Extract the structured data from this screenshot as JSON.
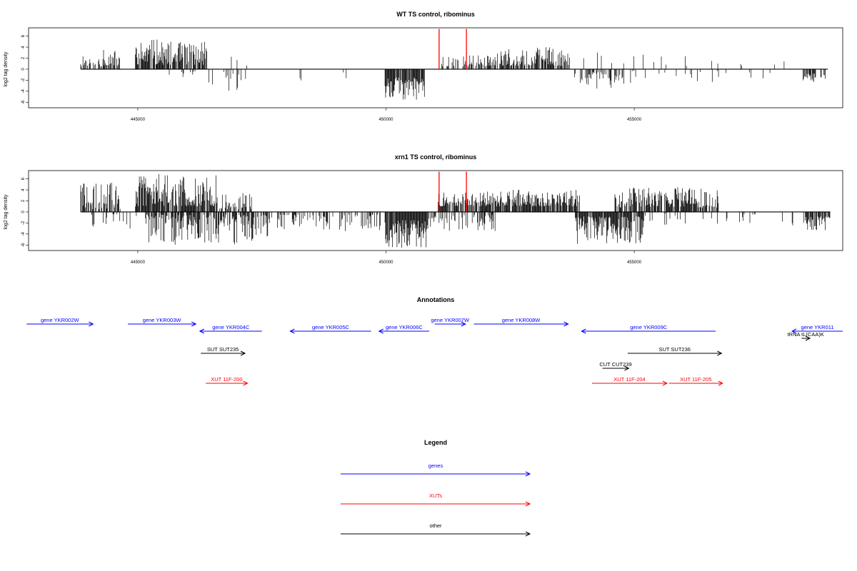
{
  "chart_data": [
    {
      "type": "bar",
      "title": "WT TS control, ribominus",
      "xlabel": "",
      "ylabel": "log2 tag density",
      "xlim": [
        442800,
        459200
      ],
      "ylim": [
        -7,
        7.5
      ],
      "x_ticks": [
        445000,
        450000,
        455000
      ],
      "x_tick_labels": [
        "445000",
        "450000",
        "455000"
      ],
      "y_ticks": [
        6,
        4,
        2,
        0,
        -2,
        -4,
        -6
      ],
      "y_tick_labels": [
        "6",
        "4",
        "2",
        "0",
        "-2",
        "-4",
        "-6"
      ],
      "markers": [
        451070,
        451620
      ],
      "marker_color": "#ff0000",
      "bar_color": "#000000",
      "regions": [
        {
          "strand": "+",
          "start": 443850,
          "end": 444650,
          "min": 0.5,
          "max": 3.5,
          "density": 0.6
        },
        {
          "strand": "+",
          "start": 444950,
          "end": 445400,
          "min": 0.8,
          "max": 5.4,
          "density": 0.8
        },
        {
          "strand": "+",
          "start": 445400,
          "end": 446400,
          "min": 0.8,
          "max": 5.0,
          "density": 0.75
        },
        {
          "strand": "+",
          "start": 446700,
          "end": 447200,
          "min": 0.5,
          "max": 3.0,
          "density": 0.2
        },
        {
          "strand": "-",
          "start": 445600,
          "end": 446300,
          "min": 0.4,
          "max": 2.0,
          "density": 0.15
        },
        {
          "strand": "-",
          "start": 446400,
          "end": 447200,
          "min": 0.5,
          "max": 4.0,
          "density": 0.25
        },
        {
          "strand": "-",
          "start": 447300,
          "end": 449800,
          "min": 0.5,
          "max": 2.5,
          "density": 0.05
        },
        {
          "strand": "-",
          "start": 449980,
          "end": 450780,
          "min": 1.5,
          "max": 5.8,
          "density": 0.9
        },
        {
          "strand": "+",
          "start": 451100,
          "end": 452200,
          "min": 0.5,
          "max": 2.5,
          "density": 0.5
        },
        {
          "strand": "+",
          "start": 452200,
          "end": 453700,
          "min": 0.6,
          "max": 4.0,
          "density": 0.7
        },
        {
          "strand": "+",
          "start": 453900,
          "end": 456200,
          "min": 0.5,
          "max": 3.0,
          "density": 0.05
        },
        {
          "strand": "+",
          "start": 456200,
          "end": 458800,
          "min": 0.5,
          "max": 2.0,
          "density": 0.02
        },
        {
          "strand": "-",
          "start": 453800,
          "end": 454800,
          "min": 0.5,
          "max": 3.5,
          "density": 0.45
        },
        {
          "strand": "-",
          "start": 454800,
          "end": 457800,
          "min": 0.3,
          "max": 2.5,
          "density": 0.06
        },
        {
          "strand": "-",
          "start": 458400,
          "end": 458900,
          "min": 0.8,
          "max": 2.3,
          "density": 0.65
        }
      ]
    },
    {
      "type": "bar",
      "title": "xrn1 TS control, ribominus",
      "xlabel": "",
      "ylabel": "log2 tag density",
      "xlim": [
        442800,
        459200
      ],
      "ylim": [
        -7,
        7.5
      ],
      "x_ticks": [
        445000,
        450000,
        455000
      ],
      "x_tick_labels": [
        "445000",
        "450000",
        "455000"
      ],
      "y_ticks": [
        6,
        4,
        2,
        0,
        -2,
        -4,
        -6
      ],
      "y_tick_labels": [
        "6",
        "4",
        "2",
        "0",
        "-2",
        "-4",
        "-6"
      ],
      "markers": [
        451070,
        451620
      ],
      "marker_color": "#ff0000",
      "bar_color": "#000000",
      "regions": [
        {
          "strand": "+",
          "start": 443850,
          "end": 444650,
          "min": 0.5,
          "max": 5.5,
          "density": 0.7
        },
        {
          "strand": "+",
          "start": 444950,
          "end": 446600,
          "min": 1.0,
          "max": 7.0,
          "density": 0.9
        },
        {
          "strand": "+",
          "start": 446600,
          "end": 447300,
          "min": 0.5,
          "max": 3.5,
          "density": 0.6
        },
        {
          "strand": "-",
          "start": 443900,
          "end": 445200,
          "min": 0.4,
          "max": 3.2,
          "density": 0.15
        },
        {
          "strand": "-",
          "start": 445200,
          "end": 447700,
          "min": 0.5,
          "max": 6.0,
          "density": 0.7
        },
        {
          "strand": "-",
          "start": 447800,
          "end": 449900,
          "min": 0.5,
          "max": 3.5,
          "density": 0.35
        },
        {
          "strand": "-",
          "start": 449980,
          "end": 450850,
          "min": 1.5,
          "max": 6.5,
          "density": 0.95
        },
        {
          "strand": "-",
          "start": 450850,
          "end": 452200,
          "min": 0.5,
          "max": 3.5,
          "density": 0.4
        },
        {
          "strand": "+",
          "start": 451050,
          "end": 452000,
          "min": 1.0,
          "max": 3.5,
          "density": 0.8
        },
        {
          "strand": "+",
          "start": 452000,
          "end": 453900,
          "min": 1.0,
          "max": 4.2,
          "density": 0.85
        },
        {
          "strand": "-",
          "start": 453800,
          "end": 455200,
          "min": 0.8,
          "max": 5.8,
          "density": 0.9
        },
        {
          "strand": "+",
          "start": 454600,
          "end": 456700,
          "min": 0.8,
          "max": 4.5,
          "density": 0.75
        },
        {
          "strand": "-",
          "start": 455200,
          "end": 458200,
          "min": 0.3,
          "max": 2.5,
          "density": 0.1
        },
        {
          "strand": "-",
          "start": 458400,
          "end": 458950,
          "min": 0.8,
          "max": 3.5,
          "density": 0.8
        }
      ]
    }
  ],
  "annotations": {
    "title": "Annotations",
    "items": [
      {
        "label": "gene YKR002W",
        "type": "gene",
        "strand": "+",
        "start": 442760,
        "end": 444100
      },
      {
        "label": "gene YKR003W",
        "type": "gene",
        "strand": "+",
        "start": 444800,
        "end": 446170
      },
      {
        "label": "gene YKR004C",
        "type": "gene",
        "strand": "-",
        "start": 446250,
        "end": 447500
      },
      {
        "label": "gene YKR005C",
        "type": "gene",
        "strand": "-",
        "start": 448070,
        "end": 449700
      },
      {
        "label": "gene YKR006C",
        "type": "gene",
        "strand": "-",
        "start": 449860,
        "end": 450870
      },
      {
        "label": "gene YKR007W",
        "type": "gene",
        "strand": "+",
        "start": 450980,
        "end": 451600
      },
      {
        "label": "gene YKR008W",
        "type": "gene",
        "strand": "+",
        "start": 451770,
        "end": 453670
      },
      {
        "label": "gene YKR009C",
        "type": "gene",
        "strand": "-",
        "start": 453940,
        "end": 456640
      },
      {
        "label": "gene YKR011",
        "type": "gene",
        "strand": "-",
        "start": 458180,
        "end": 459200
      },
      {
        "label": "tRNA tL(CAA)K",
        "type": "other",
        "strand": "+",
        "start": 458370,
        "end": 458540
      },
      {
        "label": "SUT SUT235",
        "type": "other",
        "strand": "+",
        "start": 446270,
        "end": 447160
      },
      {
        "label": "SUT SUT236",
        "type": "other",
        "strand": "+",
        "start": 454870,
        "end": 456760
      },
      {
        "label": "CUT CUT239",
        "type": "other",
        "strand": "+",
        "start": 454360,
        "end": 454890
      },
      {
        "label": "XUT 11F-200",
        "type": "xut",
        "strand": "+",
        "start": 446370,
        "end": 447210
      },
      {
        "label": "XUT 11F-204",
        "type": "xut",
        "strand": "+",
        "start": 454150,
        "end": 455660
      },
      {
        "label": "XUT 11F-205",
        "type": "xut",
        "strand": "+",
        "start": 455700,
        "end": 456780
      }
    ]
  },
  "legend": {
    "title": "Legend",
    "items": [
      {
        "label": "genes",
        "type": "gene"
      },
      {
        "label": "XUTs",
        "type": "xut"
      },
      {
        "label": "other",
        "type": "other"
      }
    ]
  },
  "colors": {
    "gene": "#0000ff",
    "xut": "#ff0000",
    "other": "#000000",
    "axis": "#000000"
  }
}
